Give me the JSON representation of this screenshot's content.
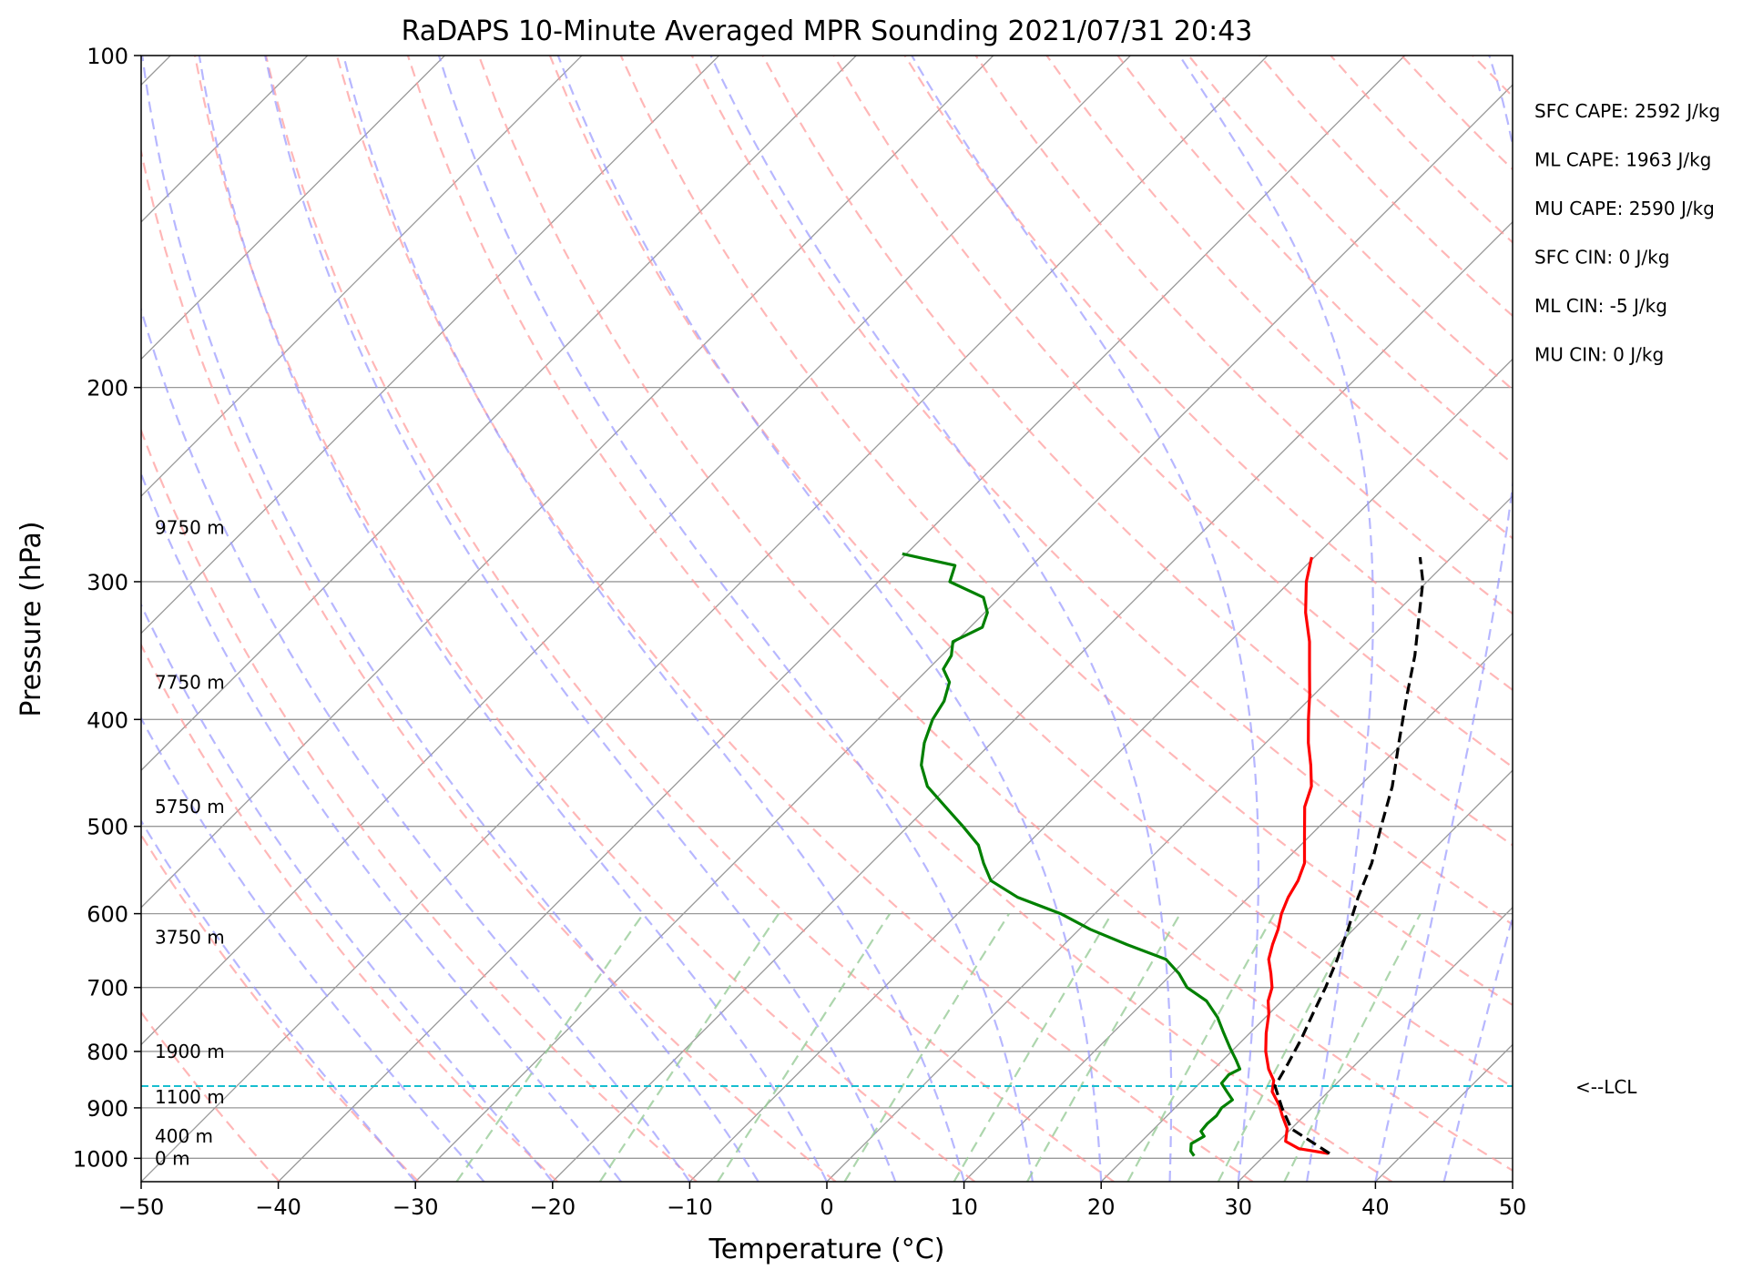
{
  "chart_data": {
    "type": "line",
    "subtype": "skew-t log-p sounding",
    "title": "RaDAPS 10-Minute Averaged MPR Sounding 2021/07/31 20:43",
    "xlabel": "Temperature (°C)",
    "ylabel": "Pressure (hPa)",
    "xlim": [
      -50,
      50
    ],
    "ylim": [
      1050,
      100
    ],
    "y_scale": "log",
    "grid": true,
    "x_ticks": [
      "−50",
      "−40",
      "−30",
      "−20",
      "−10",
      "0",
      "10",
      "20",
      "30",
      "40",
      "50"
    ],
    "y_ticks": [
      "100",
      "200",
      "300",
      "400",
      "500",
      "600",
      "700",
      "800",
      "900",
      "1000"
    ],
    "colors": {
      "temperature": "#ff0000",
      "dewpoint": "#008000",
      "parcel": "#000000",
      "lcl": "#17becf",
      "dry_adiabats": "#ff9999",
      "moist_adiabats": "#9999ff",
      "mixing_ratio": "#99cc99",
      "isotherms": "#999999"
    },
    "series": [
      {
        "key": "temperature",
        "style": "solid",
        "points": [
          {
            "p": 990,
            "t": 34.5
          },
          {
            "p": 980,
            "t": 32.0
          },
          {
            "p": 965,
            "t": 30.5
          },
          {
            "p": 940,
            "t": 29.7
          },
          {
            "p": 915,
            "t": 28.4
          },
          {
            "p": 895,
            "t": 27.4
          },
          {
            "p": 870,
            "t": 25.9
          },
          {
            "p": 850,
            "t": 25.2
          },
          {
            "p": 830,
            "t": 24.0
          },
          {
            "p": 800,
            "t": 22.5
          },
          {
            "p": 770,
            "t": 21.2
          },
          {
            "p": 740,
            "t": 20.0
          },
          {
            "p": 720,
            "t": 19.0
          },
          {
            "p": 700,
            "t": 18.3
          },
          {
            "p": 680,
            "t": 17.2
          },
          {
            "p": 660,
            "t": 16.0
          },
          {
            "p": 640,
            "t": 15.2
          },
          {
            "p": 620,
            "t": 14.5
          },
          {
            "p": 600,
            "t": 13.6
          },
          {
            "p": 580,
            "t": 12.9
          },
          {
            "p": 560,
            "t": 12.4
          },
          {
            "p": 540,
            "t": 11.6
          },
          {
            "p": 510,
            "t": 9.6
          },
          {
            "p": 480,
            "t": 7.5
          },
          {
            "p": 460,
            "t": 6.5
          },
          {
            "p": 440,
            "t": 4.9
          },
          {
            "p": 420,
            "t": 3.1
          },
          {
            "p": 400,
            "t": 1.4
          },
          {
            "p": 380,
            "t": -0.3
          },
          {
            "p": 360,
            "t": -2.2
          },
          {
            "p": 340,
            "t": -4.2
          },
          {
            "p": 320,
            "t": -6.6
          },
          {
            "p": 300,
            "t": -8.8
          },
          {
            "p": 285,
            "t": -10.2
          }
        ]
      },
      {
        "key": "dewpoint",
        "style": "solid",
        "points": [
          {
            "p": 995,
            "t": 24.9
          },
          {
            "p": 985,
            "t": 24.3
          },
          {
            "p": 970,
            "t": 23.8
          },
          {
            "p": 955,
            "t": 24.2
          },
          {
            "p": 945,
            "t": 23.6
          },
          {
            "p": 930,
            "t": 23.5
          },
          {
            "p": 915,
            "t": 23.6
          },
          {
            "p": 900,
            "t": 23.4
          },
          {
            "p": 885,
            "t": 23.6
          },
          {
            "p": 870,
            "t": 22.6
          },
          {
            "p": 855,
            "t": 21.6
          },
          {
            "p": 840,
            "t": 21.5
          },
          {
            "p": 830,
            "t": 21.9
          },
          {
            "p": 815,
            "t": 21.0
          },
          {
            "p": 795,
            "t": 19.7
          },
          {
            "p": 770,
            "t": 18.1
          },
          {
            "p": 745,
            "t": 16.5
          },
          {
            "p": 720,
            "t": 14.5
          },
          {
            "p": 700,
            "t": 12.1
          },
          {
            "p": 680,
            "t": 10.5
          },
          {
            "p": 660,
            "t": 8.5
          },
          {
            "p": 640,
            "t": 4.6
          },
          {
            "p": 620,
            "t": 0.8
          },
          {
            "p": 600,
            "t": -2.5
          },
          {
            "p": 580,
            "t": -6.8
          },
          {
            "p": 560,
            "t": -10.0
          },
          {
            "p": 540,
            "t": -11.8
          },
          {
            "p": 520,
            "t": -13.5
          },
          {
            "p": 500,
            "t": -16.0
          },
          {
            "p": 480,
            "t": -18.7
          },
          {
            "p": 460,
            "t": -21.5
          },
          {
            "p": 440,
            "t": -23.5
          },
          {
            "p": 420,
            "t": -24.9
          },
          {
            "p": 400,
            "t": -26.0
          },
          {
            "p": 385,
            "t": -26.5
          },
          {
            "p": 370,
            "t": -27.5
          },
          {
            "p": 360,
            "t": -28.9
          },
          {
            "p": 350,
            "t": -29.3
          },
          {
            "p": 340,
            "t": -30.2
          },
          {
            "p": 330,
            "t": -29.1
          },
          {
            "p": 320,
            "t": -29.8
          },
          {
            "p": 310,
            "t": -31.2
          },
          {
            "p": 300,
            "t": -34.8
          },
          {
            "p": 290,
            "t": -35.6
          },
          {
            "p": 283,
            "t": -40.3
          }
        ]
      },
      {
        "key": "parcel",
        "style": "dashed",
        "points": [
          {
            "p": 990,
            "t": 34.6
          },
          {
            "p": 940,
            "t": 30.0
          },
          {
            "p": 900,
            "t": 27.8
          },
          {
            "p": 860,
            "t": 25.7
          },
          {
            "p": 820,
            "t": 25.0
          },
          {
            "p": 780,
            "t": 24.2
          },
          {
            "p": 740,
            "t": 23.2
          },
          {
            "p": 700,
            "t": 22.2
          },
          {
            "p": 660,
            "t": 21.0
          },
          {
            "p": 620,
            "t": 19.6
          },
          {
            "p": 580,
            "t": 18.0
          },
          {
            "p": 540,
            "t": 16.5
          },
          {
            "p": 500,
            "t": 14.5
          },
          {
            "p": 460,
            "t": 12.4
          },
          {
            "p": 420,
            "t": 9.7
          },
          {
            "p": 380,
            "t": 6.8
          },
          {
            "p": 350,
            "t": 4.5
          },
          {
            "p": 320,
            "t": 1.7
          },
          {
            "p": 300,
            "t": -0.3
          },
          {
            "p": 285,
            "t": -2.3
          }
        ]
      }
    ],
    "lcl": {
      "pressure": 860,
      "label": "<--LCL"
    },
    "height_labels": [
      {
        "p": 1000,
        "label": "0 m"
      },
      {
        "p": 955,
        "label": "400 m"
      },
      {
        "p": 880,
        "label": "1100 m"
      },
      {
        "p": 800,
        "label": "1900 m"
      },
      {
        "p": 630,
        "label": "3750 m"
      },
      {
        "p": 480,
        "label": "5750 m"
      },
      {
        "p": 370,
        "label": "7750 m"
      },
      {
        "p": 268,
        "label": "9750 m"
      }
    ],
    "annotations": [
      "SFC CAPE: 2592 J/kg",
      "ML CAPE: 1963 J/kg",
      "MU CAPE: 2590 J/kg",
      "SFC CIN: 0 J/kg",
      "ML CIN: -5 J/kg",
      "MU CIN: 0 J/kg"
    ]
  }
}
